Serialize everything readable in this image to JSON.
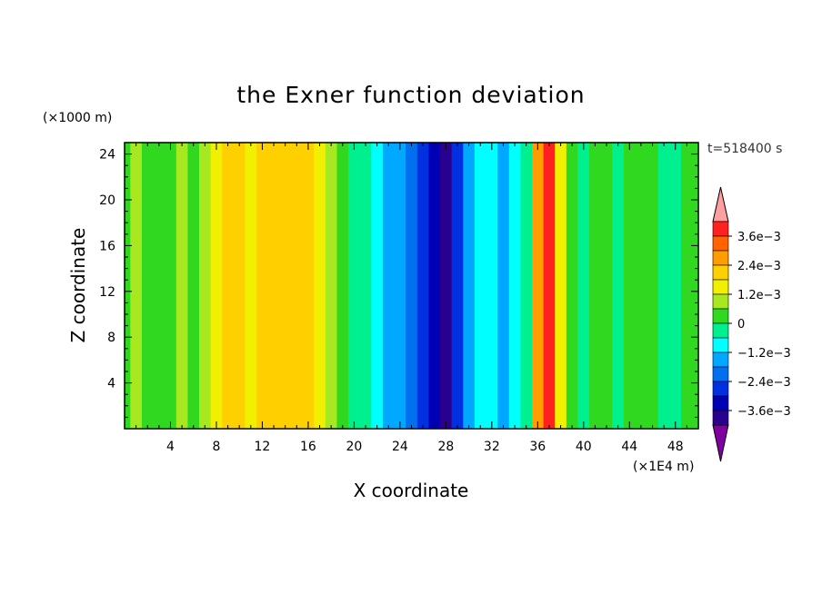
{
  "chart_data": {
    "type": "heatmap",
    "title": "the Exner function deviation",
    "xlabel": "X coordinate",
    "ylabel": "Z coordinate",
    "x_unit": "(×1E4 m)",
    "y_unit": "(×1000 m)",
    "time_label": "t=518400 s",
    "xlim": [
      0,
      50
    ],
    "ylim": [
      0,
      25
    ],
    "x_ticks": [
      "4",
      "8",
      "12",
      "16",
      "20",
      "24",
      "28",
      "32",
      "36",
      "40",
      "44",
      "48"
    ],
    "y_ticks": [
      "4",
      "8",
      "12",
      "16",
      "20",
      "24"
    ],
    "colorbar": {
      "levels": [
        -0.0042,
        -0.0036,
        -0.003,
        -0.0024,
        -0.0018,
        -0.0012,
        -0.0006,
        0,
        0.0006,
        0.0012,
        0.0018,
        0.0024,
        0.003,
        0.0036,
        0.0042
      ],
      "colors": [
        "#8000a0",
        "#2a008e",
        "#0000b4",
        "#0030e0",
        "#0070f0",
        "#00a8ff",
        "#00ffff",
        "#00f090",
        "#30d820",
        "#a8e820",
        "#f0f000",
        "#ffd000",
        "#ff9c00",
        "#ff6400",
        "#ff2020",
        "#ffa0a0"
      ],
      "tick_labels": [
        "3.6e−3",
        "2.4e−3",
        "1.2e−3",
        "0",
        "−1.2e−3",
        "−2.4e−3",
        "−3.6e−3"
      ]
    },
    "columns": [
      {
        "x": 0.0,
        "value": 0.0002
      },
      {
        "x": 1.0,
        "value": 0.0009
      },
      {
        "x": 2.0,
        "value": 0.0001
      },
      {
        "x": 3.0,
        "value": 0.0003
      },
      {
        "x": 4.0,
        "value": 0.0002
      },
      {
        "x": 5.0,
        "value": 0.0007
      },
      {
        "x": 6.0,
        "value": 0.0005
      },
      {
        "x": 7.0,
        "value": 0.001
      },
      {
        "x": 8.0,
        "value": 0.0012
      },
      {
        "x": 9.0,
        "value": 0.0019
      },
      {
        "x": 10.0,
        "value": 0.0023
      },
      {
        "x": 11.0,
        "value": 0.0017
      },
      {
        "x": 12.0,
        "value": 0.002
      },
      {
        "x": 13.0,
        "value": 0.0021
      },
      {
        "x": 14.0,
        "value": 0.0019
      },
      {
        "x": 15.0,
        "value": 0.002
      },
      {
        "x": 16.0,
        "value": 0.0023
      },
      {
        "x": 17.0,
        "value": 0.0015
      },
      {
        "x": 18.0,
        "value": 0.0008
      },
      {
        "x": 19.0,
        "value": 0.0004
      },
      {
        "x": 20.0,
        "value": -0.0003
      },
      {
        "x": 21.0,
        "value": -0.0006
      },
      {
        "x": 22.0,
        "value": -0.0009
      },
      {
        "x": 23.0,
        "value": -0.0014
      },
      {
        "x": 24.0,
        "value": -0.0018
      },
      {
        "x": 25.0,
        "value": -0.0023
      },
      {
        "x": 26.0,
        "value": -0.0028
      },
      {
        "x": 27.0,
        "value": -0.0032
      },
      {
        "x": 28.0,
        "value": -0.0038
      },
      {
        "x": 29.0,
        "value": -0.003
      },
      {
        "x": 30.0,
        "value": -0.0014
      },
      {
        "x": 31.0,
        "value": -0.0011
      },
      {
        "x": 32.0,
        "value": -0.001
      },
      {
        "x": 33.0,
        "value": -0.0014
      },
      {
        "x": 34.0,
        "value": -0.0012
      },
      {
        "x": 35.0,
        "value": -0.0004
      },
      {
        "x": 36.0,
        "value": 0.0026
      },
      {
        "x": 37.0,
        "value": 0.0038
      },
      {
        "x": 38.0,
        "value": 0.0014
      },
      {
        "x": 39.0,
        "value": 0.0003
      },
      {
        "x": 40.0,
        "value": -0.0001
      },
      {
        "x": 41.0,
        "value": 0.0
      },
      {
        "x": 42.0,
        "value": 0.0001
      },
      {
        "x": 43.0,
        "value": -5e-05
      },
      {
        "x": 44.0,
        "value": 0.0002
      },
      {
        "x": 45.0,
        "value": 0.0
      },
      {
        "x": 46.0,
        "value": 0.0003
      },
      {
        "x": 47.0,
        "value": -0.0001
      },
      {
        "x": 48.0,
        "value": -0.0001
      },
      {
        "x": 49.0,
        "value": 0.0
      },
      {
        "x": 50.0,
        "value": 0.0
      }
    ]
  }
}
